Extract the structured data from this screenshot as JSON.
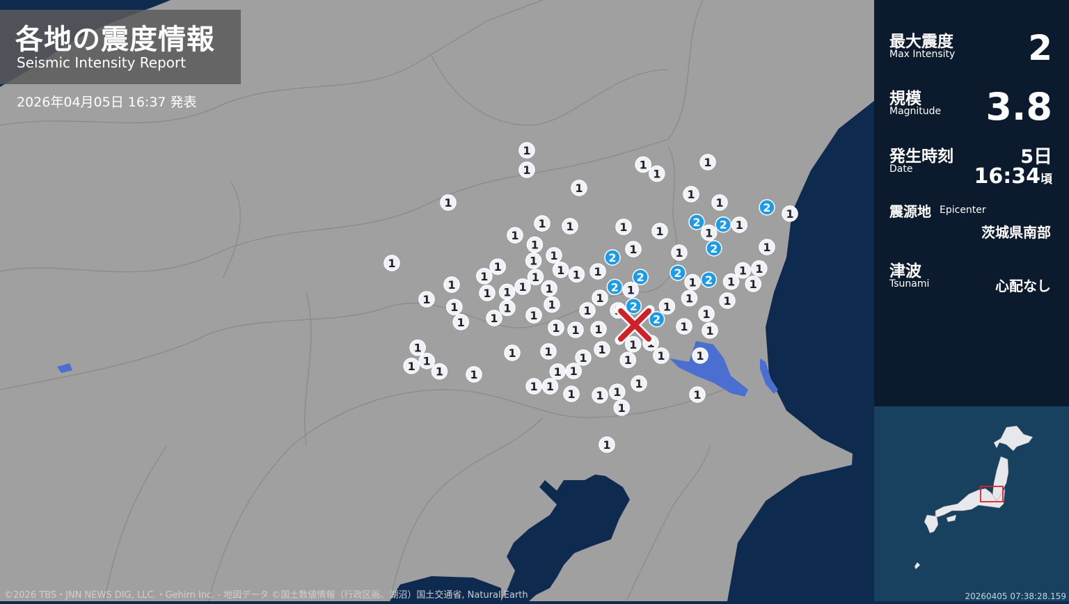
{
  "header": {
    "title_jp": "各地の震度情報",
    "title_en": "Seismic Intensity Report",
    "issued": "2026年04月05日 16:37 発表"
  },
  "summary": {
    "max_intensity": {
      "label_jp": "最大震度",
      "label_en": "Max Intensity",
      "value": "2"
    },
    "magnitude": {
      "label_jp": "規模",
      "label_en": "Magnitude",
      "value": "3.8"
    },
    "date": {
      "label_jp": "発生時刻",
      "label_en": "Date",
      "day": "5日",
      "time": "16:34",
      "suffix": "頃"
    },
    "epicenter": {
      "label_jp": "震源地",
      "label_en": "Epicenter",
      "value": "茨城県南部"
    },
    "tsunami": {
      "label_jp": "津波",
      "label_en": "Tsunami",
      "value": "心配なし"
    }
  },
  "map": {
    "colors": {
      "land": "#a0a0a0",
      "sea": "#0f2a4f",
      "lake": "#4a6fd0",
      "intensity_1": "#f0f0f8",
      "intensity_2": "#1e9be8",
      "epicenter": "#d0202a"
    },
    "station_intensities": [
      1,
      1,
      1,
      1,
      1,
      1,
      1,
      1,
      1,
      2,
      1,
      1,
      1,
      1,
      1,
      1,
      2,
      2,
      1,
      1,
      2,
      1,
      1,
      1,
      1,
      1,
      1,
      2,
      1,
      1,
      1,
      1,
      1,
      1,
      1,
      2,
      1,
      1,
      1,
      1,
      2,
      1,
      2,
      2,
      1,
      1,
      1,
      1,
      1,
      1,
      1,
      1,
      1,
      1,
      1,
      2,
      1,
      1,
      1,
      1,
      1,
      2,
      1,
      1,
      1,
      1,
      1,
      1,
      1,
      1,
      1,
      1,
      1,
      1,
      1,
      1,
      1,
      1,
      1,
      1,
      1,
      1,
      1,
      1,
      1,
      1,
      1,
      1,
      1,
      1,
      1,
      1,
      1,
      1,
      1,
      1,
      1
    ],
    "epicenter_icon": "x-mark-icon"
  },
  "minimap": {
    "timestamp": "20260405 07:38:28.159"
  },
  "credit": "©2026 TBS・JNN NEWS DIG, LLC.・Gehirn Inc. - 地図データ ©国土数値情報（行政区画、湖沼）国土交通省, Natural Earth"
}
